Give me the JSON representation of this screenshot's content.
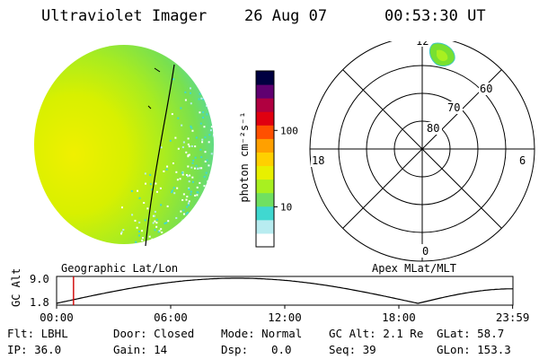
{
  "header": {
    "instrument": "Ultraviolet Imager",
    "date": "26 Aug 07",
    "time": "00:53:30 UT"
  },
  "colorbar": {
    "unit_label": "photon cm⁻²s⁻¹",
    "ticks": [
      {
        "label": "100",
        "value": 100
      },
      {
        "label": "10",
        "value": 10
      }
    ],
    "min": 3,
    "max": 600,
    "colors": [
      "#ffffff",
      "#b8ecf0",
      "#40d8d0",
      "#70e060",
      "#a8f020",
      "#e8f000",
      "#ffd000",
      "#ffa000",
      "#ff5000",
      "#e00010",
      "#b00040",
      "#600070",
      "#000040"
    ]
  },
  "polar": {
    "lat_labels": [
      "80",
      "70",
      "60"
    ],
    "mlt_labels": {
      "top": "12",
      "left": "18",
      "right": "6",
      "bottom": "0"
    },
    "caption": "Apex MLat/MLT"
  },
  "globe": {
    "caption": "Geographic Lat/Lon"
  },
  "timeline": {
    "axis_label": "GC Alt",
    "y_ticks": [
      "9.0",
      "1.8"
    ],
    "x_ticks": [
      "00:00",
      "06:00",
      "12:00",
      "18:00",
      "23:59"
    ],
    "current_time_hours": 0.89
  },
  "info": {
    "flt": "Flt: LBHL",
    "ip": "IP: 36.0",
    "door": "Door: Closed",
    "gain": "Gain: 14",
    "mode": "Mode: Normal",
    "dsp_label": "Dsp:",
    "dsp_value": "0.0",
    "gc_alt": "GC Alt: 2.1 Re",
    "seq": "Seq: 39",
    "glat": "GLat: 58.7",
    "glon": "GLon: 153.3"
  }
}
